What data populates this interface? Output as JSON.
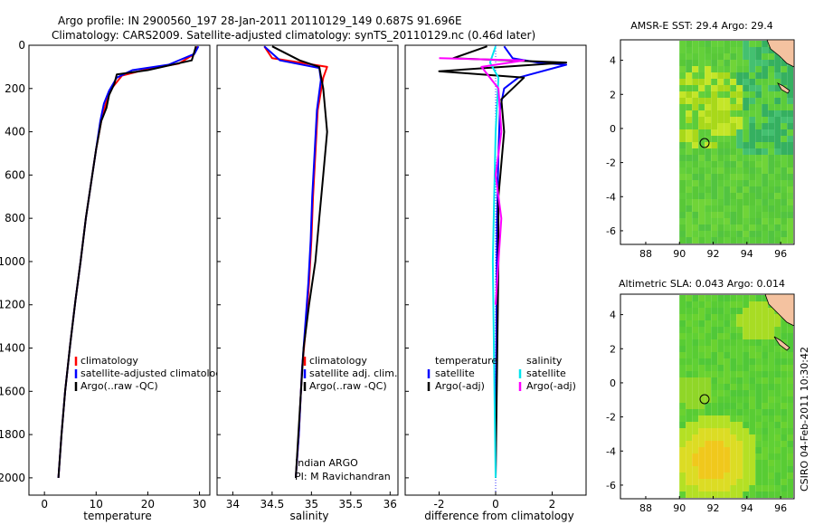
{
  "header": {
    "line1": "Argo profile: IN 2900560_197 28-Jan-2011 20110129_149 0.687S 91.696E",
    "line2": "Climatology: CARS2009. Satellite-adjusted climatology: synTS_20110129.nc (0.46d later)"
  },
  "colors": {
    "climatology": "#ff0000",
    "satellite": "#0000ff",
    "argo": "#000000",
    "sal_satellite": "#00e5ee",
    "sal_argo": "#ff00ff"
  },
  "chart_data": [
    {
      "type": "line",
      "panel": "temperature",
      "xlabel": "temperature",
      "ylabel": "",
      "xlim": [
        -3,
        32
      ],
      "ylim": [
        2080,
        0
      ],
      "xticks": [
        "0",
        "10",
        "20",
        "30"
      ],
      "yticks": [
        "0",
        "200",
        "400",
        "600",
        "800",
        "1000",
        "1200",
        "1400",
        "1600",
        "1800",
        "2000"
      ],
      "legend": [
        "climatology",
        "satellite-adjusted climatology",
        "Argo(..raw -QC)"
      ],
      "series": [
        {
          "name": "climatology",
          "color": "#ff0000",
          "x": [
            29.5,
            29.0,
            26.0,
            20.0,
            15.0,
            13.0,
            12.0,
            11.0,
            10.0,
            9.0,
            8.0,
            7.0,
            6.0,
            5.0,
            4.0,
            3.3,
            2.7
          ],
          "y": [
            5,
            40,
            85,
            110,
            140,
            200,
            260,
            350,
            480,
            640,
            800,
            1000,
            1180,
            1380,
            1600,
            1800,
            2000
          ]
        },
        {
          "name": "satellite-adjusted climatology",
          "color": "#0000ff",
          "x": [
            29.8,
            29.0,
            24.0,
            17.0,
            14.0,
            12.5,
            11.5,
            10.8,
            10.0,
            9.0,
            8.0,
            7.0,
            6.0,
            5.0,
            4.0,
            3.3,
            2.7
          ],
          "y": [
            5,
            40,
            90,
            115,
            150,
            210,
            270,
            350,
            480,
            640,
            800,
            1000,
            1180,
            1380,
            1600,
            1800,
            2000
          ]
        },
        {
          "name": "Argo(..raw -QC)",
          "color": "#000000",
          "x": [
            29.3,
            29.0,
            28.5,
            20.0,
            14.0,
            13.5,
            12.5,
            12.0,
            11.0,
            10.0,
            9.0,
            8.0,
            7.0,
            6.0,
            5.0,
            4.0,
            3.3,
            2.7
          ],
          "y": [
            5,
            30,
            70,
            115,
            135,
            180,
            230,
            290,
            350,
            480,
            640,
            800,
            1000,
            1180,
            1380,
            1600,
            1800,
            2000
          ]
        }
      ]
    },
    {
      "type": "line",
      "panel": "salinity",
      "xlabel": "salinity",
      "xlim": [
        33.8,
        36.1
      ],
      "ylim": [
        2080,
        0
      ],
      "xticks": [
        "34",
        "34.5",
        "35",
        "35.5",
        "36"
      ],
      "legend": [
        "climatology",
        "satellite adj. clim.",
        "Argo(..raw -QC)"
      ],
      "annotation": [
        "Indian ARGO",
        "PI: M Ravichandran"
      ],
      "series": [
        {
          "name": "climatology",
          "color": "#ff0000",
          "x": [
            34.4,
            34.5,
            35.2,
            35.15,
            35.08,
            35.05,
            35.02,
            35.0,
            34.97,
            34.93,
            34.88,
            34.84,
            34.8
          ],
          "y": [
            5,
            60,
            100,
            150,
            300,
            500,
            700,
            900,
            1100,
            1300,
            1500,
            1800,
            2000
          ]
        },
        {
          "name": "satellite adj. clim.",
          "color": "#0000ff",
          "x": [
            34.4,
            34.6,
            35.1,
            35.12,
            35.07,
            35.04,
            35.01,
            34.99,
            34.96,
            34.92,
            34.88,
            34.84,
            34.8
          ],
          "y": [
            5,
            70,
            105,
            160,
            300,
            500,
            700,
            900,
            1100,
            1300,
            1500,
            1800,
            2000
          ]
        },
        {
          "name": "Argo(..raw -QC)",
          "color": "#000000",
          "x": [
            34.5,
            34.85,
            35.1,
            35.15,
            35.2,
            35.15,
            35.1,
            35.05,
            34.97,
            34.9,
            34.85,
            34.8
          ],
          "y": [
            5,
            70,
            100,
            200,
            400,
            600,
            800,
            1000,
            1200,
            1400,
            1700,
            2000
          ]
        }
      ]
    },
    {
      "type": "line",
      "panel": "difference",
      "xlabel": "difference from climatology",
      "xlim": [
        -3.2,
        3.2
      ],
      "ylim": [
        2080,
        0
      ],
      "xticks": [
        "-2",
        "0",
        "2"
      ],
      "legend_temperature_title": "temperature",
      "legend_salinity_title": "salinity",
      "legend_temperature": [
        "satellite",
        "Argo(-adj)"
      ],
      "legend_salinity": [
        "satellite",
        "Argo(-adj)"
      ],
      "series": [
        {
          "name": "temperature satellite",
          "color": "#0000ff",
          "x": [
            0.3,
            0.6,
            1.5,
            2.5,
            0.8,
            0.3,
            0.15,
            0.1,
            0.05,
            0.03,
            0.0
          ],
          "y": [
            5,
            60,
            80,
            90,
            150,
            200,
            300,
            500,
            800,
            1300,
            2000
          ]
        },
        {
          "name": "temperature Argo(-adj)",
          "color": "#000000",
          "x": [
            -0.3,
            -1.5,
            2.5,
            -2.0,
            1.0,
            0.2,
            0.3,
            0.1,
            0.1,
            0.0
          ],
          "y": [
            5,
            60,
            80,
            120,
            150,
            250,
            400,
            700,
            1000,
            2000
          ]
        },
        {
          "name": "salinity satellite",
          "color": "#00e5ee",
          "x": [
            0.0,
            -0.2,
            0.1,
            0.0,
            -0.05,
            -0.1,
            -0.05,
            0.0
          ],
          "y": [
            5,
            80,
            150,
            400,
            700,
            1000,
            1500,
            2000
          ]
        },
        {
          "name": "salinity Argo(-adj)",
          "color": "#ff00ff",
          "x": [
            -2.0,
            1.0,
            -0.5,
            0.1,
            0.2,
            0.0,
            0.2,
            0.1,
            0.0
          ],
          "y": [
            60,
            70,
            100,
            200,
            400,
            600,
            800,
            1000,
            1200
          ]
        }
      ]
    },
    {
      "type": "heatmap",
      "panel": "sst-map",
      "title": "AMSR-E SST: 29.4 Argo: 29.4",
      "xlim": [
        86.5,
        96.8
      ],
      "ylim": [
        -6.8,
        5.2
      ],
      "xticks": [
        "88",
        "90",
        "92",
        "94",
        "96"
      ],
      "yticks": [
        "4",
        "2",
        "0",
        "-2",
        "-4",
        "-6"
      ],
      "data_xrange": [
        90,
        96.8
      ],
      "argo_position": {
        "lon": 91.696,
        "lat": -0.687
      }
    },
    {
      "type": "heatmap",
      "panel": "sla-map",
      "title": "Altimetric SLA: 0.043 Argo: 0.014",
      "xlim": [
        86.5,
        96.8
      ],
      "ylim": [
        -6.8,
        5.2
      ],
      "xticks": [
        "88",
        "90",
        "92",
        "94",
        "96"
      ],
      "yticks": [
        "4",
        "2",
        "0",
        "-2",
        "-4",
        "-6"
      ],
      "data_xrange": [
        90,
        96.8
      ],
      "argo_position": {
        "lon": 91.696,
        "lat": -0.687
      }
    }
  ],
  "footer_stamp": "CSIRO 04-Feb-2011 10:30:42"
}
